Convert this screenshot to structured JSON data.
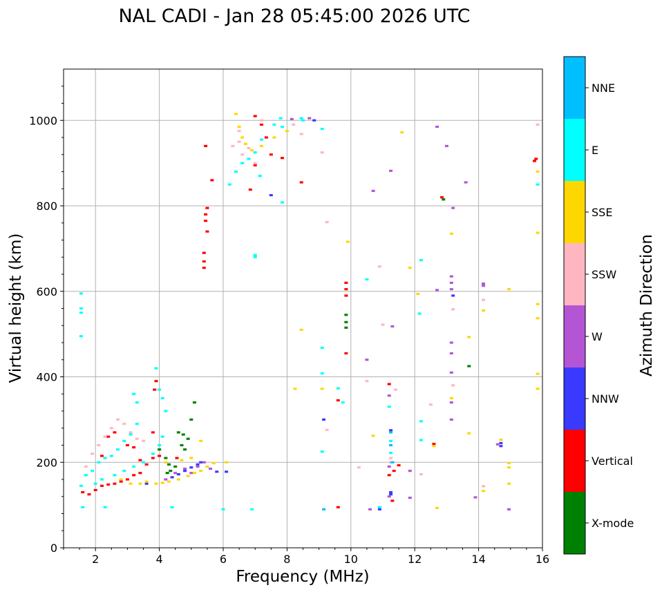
{
  "chart_data": {
    "type": "scatter",
    "title": "NAL CADI - Jan 28 05:45:00 2026 UTC",
    "xlabel": "Frequency (MHz)",
    "ylabel": "Virtual height (km)",
    "xlim": [
      1,
      16
    ],
    "ylim": [
      0,
      1120
    ],
    "xticks": [
      2,
      4,
      6,
      8,
      10,
      12,
      14,
      16
    ],
    "yticks": [
      0,
      200,
      400,
      600,
      800,
      1000
    ],
    "grid": true,
    "colorbar": {
      "title": "Azimuth Direction",
      "categories": [
        {
          "name": "X-mode",
          "color": "#008000"
        },
        {
          "name": "Vertical",
          "color": "#ff0000"
        },
        {
          "name": "NNW",
          "color": "#3a3aff"
        },
        {
          "name": "W",
          "color": "#b455d6"
        },
        {
          "name": "SSW",
          "color": "#ffb6c1"
        },
        {
          "name": "SSE",
          "color": "#ffd700"
        },
        {
          "name": "E",
          "color": "#00ffff"
        },
        {
          "name": "NNE",
          "color": "#00bfff"
        }
      ]
    },
    "series": [
      {
        "name": "X-mode",
        "points": [
          [
            4.25,
            175
          ],
          [
            4.35,
            180
          ],
          [
            4.5,
            190
          ],
          [
            4.7,
            240
          ],
          [
            4.8,
            230
          ],
          [
            4.9,
            255
          ],
          [
            5.0,
            300
          ],
          [
            5.1,
            340
          ],
          [
            4.0,
            230
          ],
          [
            4.2,
            210
          ],
          [
            9.85,
            545
          ],
          [
            9.85,
            528
          ],
          [
            9.85,
            515
          ],
          [
            12.9,
            815
          ],
          [
            13.7,
            425
          ],
          [
            4.3,
            195
          ],
          [
            4.6,
            270
          ],
          [
            4.75,
            265
          ]
        ]
      },
      {
        "name": "Vertical",
        "points": [
          [
            1.6,
            130
          ],
          [
            1.8,
            125
          ],
          [
            2.0,
            135
          ],
          [
            2.2,
            145
          ],
          [
            2.4,
            148
          ],
          [
            2.6,
            150
          ],
          [
            2.8,
            155
          ],
          [
            3.0,
            160
          ],
          [
            3.2,
            170
          ],
          [
            3.4,
            175
          ],
          [
            3.6,
            195
          ],
          [
            3.8,
            210
          ],
          [
            4.0,
            215
          ],
          [
            2.2,
            215
          ],
          [
            2.4,
            260
          ],
          [
            2.6,
            270
          ],
          [
            3.0,
            240
          ],
          [
            3.2,
            235
          ],
          [
            3.85,
            370
          ],
          [
            3.9,
            390
          ],
          [
            3.8,
            270
          ],
          [
            3.4,
            205
          ],
          [
            5.65,
            860
          ],
          [
            5.45,
            780
          ],
          [
            5.45,
            765
          ],
          [
            5.5,
            795
          ],
          [
            5.5,
            740
          ],
          [
            5.4,
            690
          ],
          [
            5.4,
            670
          ],
          [
            5.4,
            655
          ],
          [
            5.45,
            940
          ],
          [
            7.0,
            1010
          ],
          [
            7.2,
            990
          ],
          [
            7.35,
            960
          ],
          [
            7.5,
            920
          ],
          [
            7.0,
            895
          ],
          [
            6.85,
            838
          ],
          [
            7.85,
            912
          ],
          [
            8.45,
            855
          ],
          [
            9.85,
            620
          ],
          [
            9.85,
            605
          ],
          [
            9.85,
            590
          ],
          [
            9.85,
            455
          ],
          [
            9.6,
            345
          ],
          [
            9.6,
            95
          ],
          [
            11.2,
            383
          ],
          [
            11.3,
            110
          ],
          [
            11.35,
            180
          ],
          [
            11.2,
            170
          ],
          [
            11.5,
            193
          ],
          [
            12.85,
            820
          ],
          [
            12.6,
            243
          ],
          [
            15.8,
            910
          ],
          [
            15.75,
            905
          ],
          [
            4.55,
            210
          ]
        ]
      },
      {
        "name": "NNW",
        "points": [
          [
            4.4,
            165
          ],
          [
            4.6,
            172
          ],
          [
            4.8,
            180
          ],
          [
            5.0,
            188
          ],
          [
            5.2,
            195
          ],
          [
            5.8,
            178
          ],
          [
            6.1,
            178
          ],
          [
            5.3,
            200
          ],
          [
            3.6,
            150
          ],
          [
            14.7,
            245
          ],
          [
            14.7,
            238
          ],
          [
            9.15,
            300
          ],
          [
            11.25,
            130
          ],
          [
            11.25,
            125
          ],
          [
            11.25,
            275
          ],
          [
            13.2,
            590
          ],
          [
            7.5,
            825
          ],
          [
            8.85,
            1000
          ],
          [
            10.9,
            90
          ]
        ]
      },
      {
        "name": "W",
        "points": [
          [
            5.0,
            175
          ],
          [
            5.2,
            190
          ],
          [
            5.4,
            200
          ],
          [
            5.6,
            185
          ],
          [
            4.2,
            160
          ],
          [
            4.5,
            175
          ],
          [
            4.8,
            185
          ],
          [
            8.7,
            1005
          ],
          [
            8.15,
            1003
          ],
          [
            13.15,
            635
          ],
          [
            13.15,
            620
          ],
          [
            13.15,
            605
          ],
          [
            13.15,
            480
          ],
          [
            13.15,
            455
          ],
          [
            13.15,
            410
          ],
          [
            13.15,
            340
          ],
          [
            13.15,
            300
          ],
          [
            12.7,
            985
          ],
          [
            13.0,
            940
          ],
          [
            13.2,
            795
          ],
          [
            13.6,
            855
          ],
          [
            10.7,
            835
          ],
          [
            11.25,
            882
          ],
          [
            11.3,
            518
          ],
          [
            10.5,
            440
          ],
          [
            11.2,
            356
          ],
          [
            11.2,
            190
          ],
          [
            11.2,
            120
          ],
          [
            11.85,
            180
          ],
          [
            11.85,
            117
          ],
          [
            13.9,
            118
          ],
          [
            14.15,
            618
          ],
          [
            14.15,
            613
          ],
          [
            14.95,
            90
          ],
          [
            14.6,
            242
          ],
          [
            12.7,
            603
          ],
          [
            10.6,
            90
          ]
        ]
      },
      {
        "name": "SSW",
        "points": [
          [
            1.7,
            190
          ],
          [
            1.9,
            220
          ],
          [
            2.1,
            240
          ],
          [
            2.3,
            260
          ],
          [
            2.5,
            280
          ],
          [
            2.7,
            300
          ],
          [
            2.9,
            290
          ],
          [
            3.1,
            270
          ],
          [
            3.3,
            255
          ],
          [
            3.5,
            250
          ],
          [
            6.5,
            950
          ],
          [
            6.6,
            920
          ],
          [
            6.8,
            935
          ],
          [
            7.0,
            900
          ],
          [
            6.3,
            940
          ],
          [
            7.2,
            1000
          ],
          [
            8.2,
            990
          ],
          [
            8.45,
            968
          ],
          [
            9.1,
            925
          ],
          [
            9.25,
            762
          ],
          [
            10.9,
            658
          ],
          [
            11.0,
            522
          ],
          [
            10.5,
            390
          ],
          [
            11.4,
            370
          ],
          [
            9.25,
            276
          ],
          [
            10.25,
            188
          ],
          [
            12.2,
            172
          ],
          [
            12.5,
            335
          ],
          [
            13.2,
            558
          ],
          [
            13.2,
            380
          ],
          [
            14.15,
            580
          ],
          [
            14.15,
            144
          ],
          [
            15.85,
            990
          ],
          [
            11.25,
            200
          ],
          [
            11.25,
            210
          ],
          [
            6.5,
            975
          ]
        ]
      },
      {
        "name": "SSE",
        "points": [
          [
            3.4,
            150
          ],
          [
            3.6,
            155
          ],
          [
            3.9,
            150
          ],
          [
            4.1,
            152
          ],
          [
            4.3,
            155
          ],
          [
            4.6,
            160
          ],
          [
            4.9,
            168
          ],
          [
            5.1,
            175
          ],
          [
            5.3,
            180
          ],
          [
            5.5,
            190
          ],
          [
            5.7,
            198
          ],
          [
            2.8,
            160
          ],
          [
            3.1,
            150
          ],
          [
            4.2,
            200
          ],
          [
            4.7,
            205
          ],
          [
            5.0,
            210
          ],
          [
            5.3,
            250
          ],
          [
            6.4,
            1015
          ],
          [
            6.5,
            985
          ],
          [
            6.6,
            960
          ],
          [
            6.7,
            945
          ],
          [
            6.9,
            930
          ],
          [
            7.2,
            940
          ],
          [
            7.6,
            960
          ],
          [
            8.0,
            975
          ],
          [
            9.9,
            716
          ],
          [
            11.6,
            972
          ],
          [
            8.45,
            510
          ],
          [
            8.25,
            372
          ],
          [
            9.1,
            372
          ],
          [
            10.7,
            262
          ],
          [
            12.1,
            594
          ],
          [
            11.85,
            655
          ],
          [
            13.15,
            735
          ],
          [
            13.15,
            350
          ],
          [
            13.7,
            493
          ],
          [
            13.7,
            268
          ],
          [
            14.15,
            555
          ],
          [
            14.15,
            133
          ],
          [
            12.6,
            238
          ],
          [
            12.7,
            93
          ],
          [
            14.95,
            605
          ],
          [
            14.95,
            198
          ],
          [
            14.95,
            188
          ],
          [
            14.95,
            150
          ],
          [
            15.85,
            880
          ],
          [
            15.85,
            737
          ],
          [
            15.85,
            570
          ],
          [
            15.85,
            537
          ],
          [
            15.85,
            407
          ],
          [
            15.85,
            372
          ],
          [
            14.7,
            253
          ],
          [
            6.1,
            200
          ]
        ]
      },
      {
        "name": "E",
        "points": [
          [
            1.55,
            145
          ],
          [
            1.7,
            170
          ],
          [
            1.9,
            180
          ],
          [
            2.1,
            200
          ],
          [
            2.3,
            210
          ],
          [
            2.5,
            215
          ],
          [
            2.7,
            230
          ],
          [
            2.9,
            250
          ],
          [
            3.1,
            265
          ],
          [
            3.3,
            290
          ],
          [
            2.0,
            150
          ],
          [
            2.2,
            160
          ],
          [
            2.6,
            170
          ],
          [
            2.9,
            180
          ],
          [
            3.2,
            190
          ],
          [
            3.5,
            200
          ],
          [
            3.8,
            220
          ],
          [
            4.0,
            240
          ],
          [
            4.1,
            260
          ],
          [
            4.2,
            320
          ],
          [
            4.1,
            350
          ],
          [
            4.0,
            370
          ],
          [
            3.9,
            420
          ],
          [
            3.2,
            360
          ],
          [
            3.3,
            340
          ],
          [
            1.6,
            95
          ],
          [
            2.3,
            95
          ],
          [
            4.4,
            95
          ],
          [
            1.55,
            595
          ],
          [
            1.55,
            560
          ],
          [
            1.55,
            550
          ],
          [
            1.55,
            495
          ],
          [
            6.2,
            850
          ],
          [
            6.4,
            880
          ],
          [
            6.6,
            900
          ],
          [
            6.8,
            910
          ],
          [
            7.0,
            925
          ],
          [
            7.2,
            955
          ],
          [
            7.6,
            990
          ],
          [
            7.8,
            1005
          ],
          [
            7.85,
            985
          ],
          [
            7.0,
            685
          ],
          [
            7.0,
            680
          ],
          [
            7.85,
            808
          ],
          [
            8.5,
            1000
          ],
          [
            9.1,
            980
          ],
          [
            9.1,
            468
          ],
          [
            9.1,
            408
          ],
          [
            9.1,
            225
          ],
          [
            9.6,
            373
          ],
          [
            9.75,
            340
          ],
          [
            10.5,
            628
          ],
          [
            10.9,
            95
          ],
          [
            11.25,
            222
          ],
          [
            11.25,
            250
          ],
          [
            11.2,
            330
          ],
          [
            12.2,
            673
          ],
          [
            12.15,
            548
          ],
          [
            12.2,
            296
          ],
          [
            12.2,
            252
          ],
          [
            15.85,
            850
          ],
          [
            7.15,
            870
          ],
          [
            6.0,
            90
          ],
          [
            6.9,
            90
          ],
          [
            8.45,
            1005
          ]
        ]
      },
      {
        "name": "NNE",
        "points": [
          [
            11.25,
            270
          ],
          [
            11.25,
            240
          ],
          [
            9.15,
            90
          ],
          [
            11.3,
            200
          ]
        ]
      }
    ]
  }
}
